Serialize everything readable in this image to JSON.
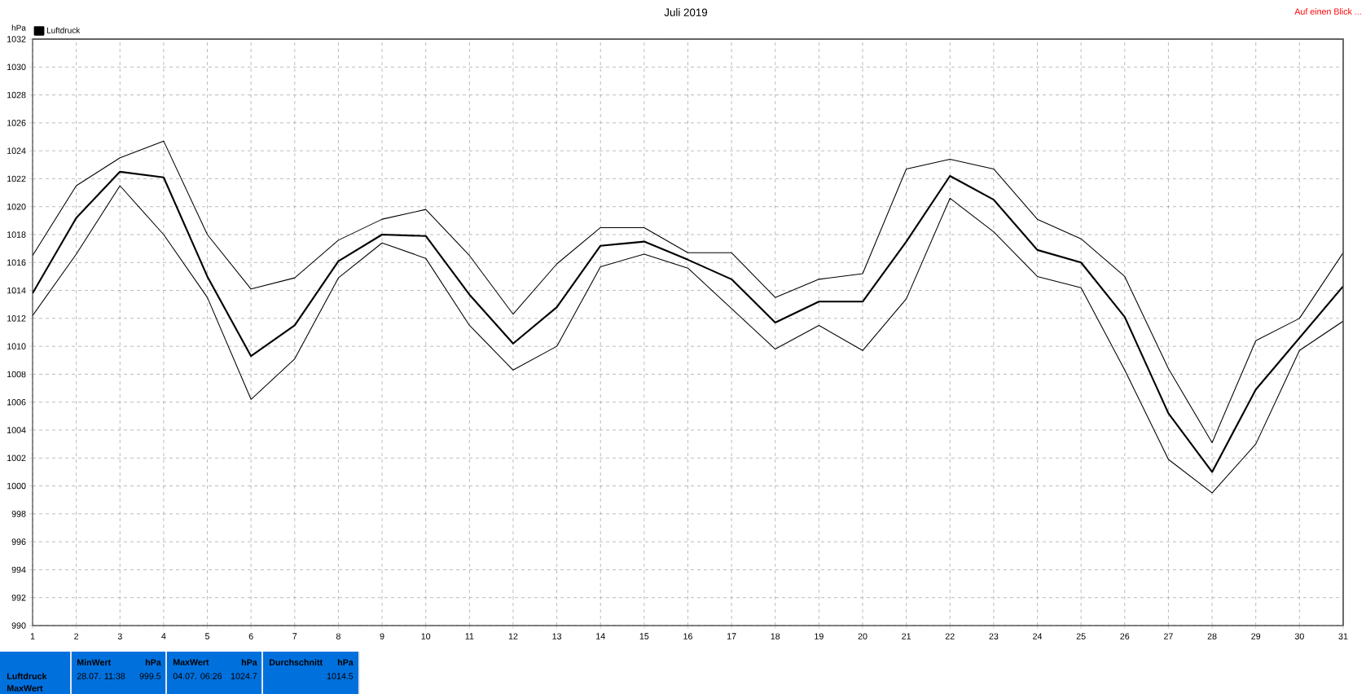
{
  "chart_data": {
    "type": "line",
    "title": "Juli 2019",
    "ylabel": "hPa",
    "x": [
      1,
      2,
      3,
      4,
      5,
      6,
      7,
      8,
      9,
      10,
      11,
      12,
      13,
      14,
      15,
      16,
      17,
      18,
      19,
      20,
      21,
      22,
      23,
      24,
      25,
      26,
      27,
      28,
      29,
      30,
      31
    ],
    "series": [
      {
        "name": "Luftdruck",
        "color": "#000000",
        "values": [
          1013.8,
          1019.2,
          1022.5,
          1022.1,
          1015.0,
          1009.3,
          1011.5,
          1016.1,
          1018.0,
          1017.9,
          1013.7,
          1010.2,
          1012.8,
          1017.2,
          1017.5,
          1016.2,
          1014.8,
          1011.7,
          1013.2,
          1013.2,
          1017.5,
          1022.2,
          1020.5,
          1016.9,
          1016.0,
          1012.1,
          1005.2,
          1001.0,
          1006.9,
          1010.6,
          1014.3
        ]
      },
      {
        "color": "#000000",
        "values": [
          1016.5,
          1021.5,
          1023.5,
          1024.7,
          1018.0,
          1014.1,
          1014.9,
          1017.6,
          1019.1,
          1019.8,
          1016.5,
          1012.3,
          1015.9,
          1018.5,
          1018.5,
          1016.7,
          1016.7,
          1013.5,
          1014.8,
          1015.2,
          1022.7,
          1023.4,
          1022.7,
          1019.1,
          1017.7,
          1015.0,
          1008.4,
          1003.1,
          1010.4,
          1012.0,
          1016.7
        ]
      },
      {
        "color": "#000000",
        "values": [
          1012.2,
          1016.6,
          1021.5,
          1018.0,
          1013.5,
          1006.2,
          1009.1,
          1014.9,
          1017.4,
          1016.3,
          1011.5,
          1008.3,
          1010.0,
          1015.7,
          1016.6,
          1015.6,
          1012.7,
          1009.8,
          1011.5,
          1009.7,
          1013.4,
          1020.6,
          1018.2,
          1015.0,
          1014.2,
          1008.3,
          1001.9,
          999.5,
          1003.0,
          1009.7,
          1011.8
        ]
      }
    ],
    "xlim": [
      1,
      31
    ],
    "xticks": [
      1,
      2,
      3,
      4,
      5,
      6,
      7,
      8,
      9,
      10,
      11,
      12,
      13,
      14,
      15,
      16,
      17,
      18,
      19,
      20,
      21,
      22,
      23,
      24,
      25,
      26,
      27,
      28,
      29,
      30,
      31
    ],
    "ylim": [
      990,
      1032
    ],
    "yticks": [
      990,
      992,
      994,
      996,
      998,
      1000,
      1002,
      1004,
      1006,
      1008,
      1010,
      1012,
      1014,
      1016,
      1018,
      1020,
      1022,
      1024,
      1026,
      1028,
      1030,
      1032
    ],
    "grid": true,
    "legend": "top left",
    "annotations": [
      "Auf einen Blick ...",
      "Luftdruck",
      "MaxWert",
      "MinWert",
      "hPa",
      "28.07. 11:38",
      "999.5",
      "MaxWert",
      "hPa",
      "04.07. 06:26",
      "1024.7",
      "Durchschnitt",
      "hPa",
      "1014.5"
    ]
  }
}
